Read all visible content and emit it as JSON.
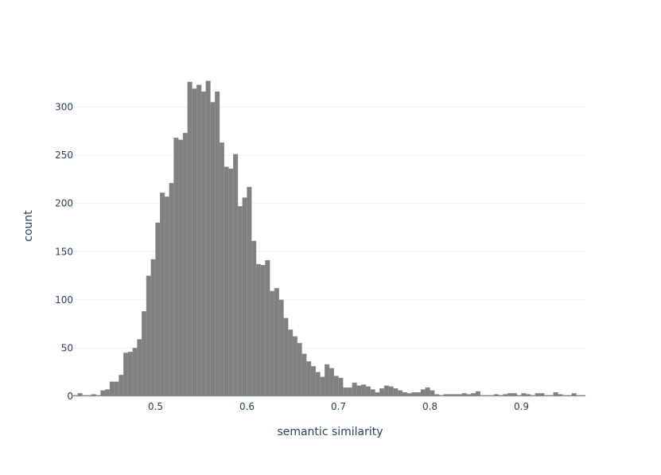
{
  "chart_data": {
    "type": "bar",
    "subtype": "histogram",
    "xlabel": "semantic similarity",
    "ylabel": "count",
    "xlim": [
      0.41,
      0.97
    ],
    "ylim": [
      0,
      345
    ],
    "x_ticks": [
      0.5,
      0.6,
      0.7,
      0.8,
      0.9
    ],
    "x_tick_labels": [
      "0.5",
      "0.6",
      "0.7",
      "0.8",
      "0.9"
    ],
    "y_ticks": [
      0,
      50,
      100,
      150,
      200,
      250,
      300
    ],
    "y_tick_labels": [
      "0",
      "50",
      "100",
      "150",
      "200",
      "250",
      "300"
    ],
    "grid": true,
    "legend": false,
    "bin_width": 0.005,
    "bin_start": 0.41,
    "counts": [
      1,
      3,
      1,
      1,
      2,
      1,
      6,
      7,
      15,
      15,
      22,
      45,
      46,
      50,
      59,
      88,
      125,
      142,
      180,
      211,
      207,
      221,
      268,
      266,
      273,
      326,
      319,
      323,
      316,
      327,
      305,
      316,
      263,
      238,
      236,
      251,
      197,
      206,
      217,
      161,
      137,
      136,
      141,
      109,
      112,
      100,
      81,
      69,
      62,
      55,
      44,
      36,
      31,
      25,
      20,
      33,
      29,
      21,
      19,
      9,
      9,
      14,
      11,
      12,
      10,
      7,
      4,
      8,
      11,
      10,
      8,
      6,
      4,
      3,
      4,
      4,
      7,
      9,
      6,
      2,
      1,
      2,
      2,
      2,
      2,
      3,
      2,
      3,
      5,
      1,
      1,
      1,
      2,
      1,
      2,
      3,
      3,
      1,
      3,
      2,
      1,
      3,
      3,
      1,
      1,
      4,
      2,
      1,
      1,
      3,
      1,
      1,
      3
    ],
    "colors": {
      "bar": "#808080",
      "bar_outline": "#9a9a9a",
      "grid": "#ebf0f8",
      "text": "#2a3f5f",
      "background": "#ffffff"
    }
  }
}
